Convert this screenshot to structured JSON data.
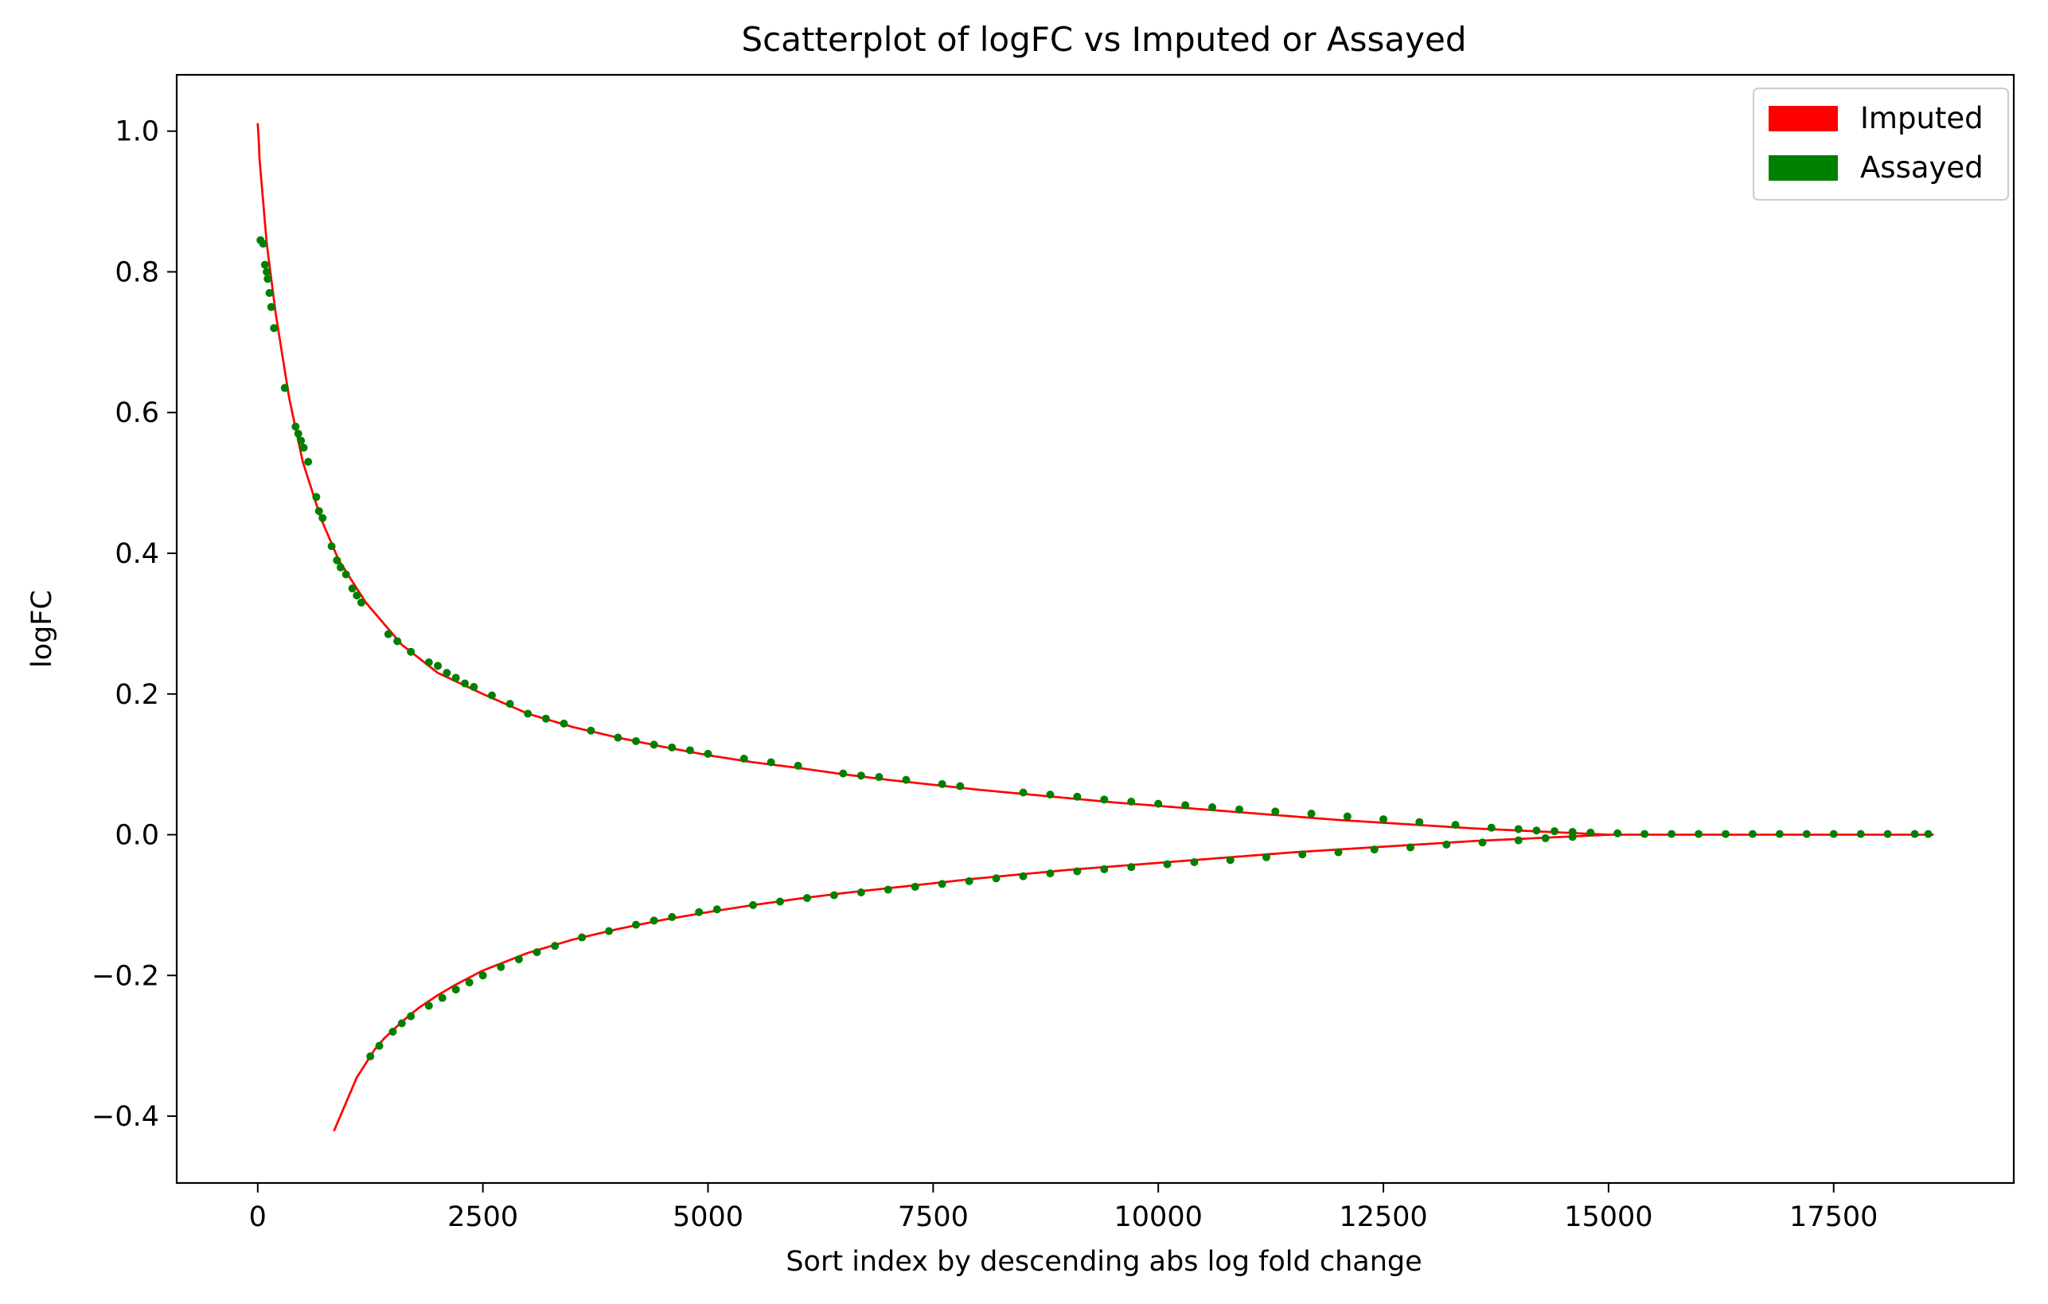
{
  "chart_data": {
    "type": "scatter",
    "title": "Scatterplot of logFC vs Imputed or Assayed",
    "xlabel": "Sort index by descending abs log fold change",
    "ylabel": "logFC",
    "xlim": [
      -900,
      19500
    ],
    "ylim": [
      -0.495,
      1.08
    ],
    "xticks": [
      0,
      2500,
      5000,
      7500,
      10000,
      12500,
      15000,
      17500
    ],
    "xtick_labels": [
      "0",
      "2500",
      "5000",
      "7500",
      "10000",
      "12500",
      "15000",
      "17500"
    ],
    "yticks": [
      -0.4,
      -0.2,
      0.0,
      0.2,
      0.4,
      0.6,
      0.8,
      1.0
    ],
    "ytick_labels": [
      "−0.4",
      "−0.2",
      "0.0",
      "0.2",
      "0.4",
      "0.6",
      "0.8",
      "1.0"
    ],
    "grid": false,
    "legend_position": "top-right",
    "series": [
      {
        "name": "Imputed",
        "color": "#ff0000",
        "marker": "small-dot",
        "curves": [
          {
            "branch": "positive",
            "x": [
              0,
              10,
              20,
              40,
              60,
              80,
              100,
              130,
              160,
              200,
              250,
              300,
              350,
              400,
              450,
              500,
              600,
              700,
              800,
              900,
              1000,
              1200,
              1400,
              1600,
              1800,
              2000,
              2500,
              3000,
              3500,
              4000,
              4500,
              5000,
              5500,
              6000,
              6500,
              7000,
              7500,
              8000,
              8500,
              9000,
              9500,
              10000,
              10500,
              11000,
              11500,
              12000,
              12500,
              13000,
              13500,
              14000,
              14500,
              15000
            ],
            "y": [
              1.01,
              0.99,
              0.96,
              0.93,
              0.9,
              0.87,
              0.84,
              0.81,
              0.78,
              0.74,
              0.7,
              0.66,
              0.62,
              0.59,
              0.56,
              0.53,
              0.49,
              0.45,
              0.42,
              0.39,
              0.37,
              0.33,
              0.3,
              0.27,
              0.25,
              0.23,
              0.2,
              0.172,
              0.153,
              0.138,
              0.125,
              0.113,
              0.103,
              0.095,
              0.086,
              0.078,
              0.071,
              0.064,
              0.058,
              0.052,
              0.046,
              0.041,
              0.036,
              0.031,
              0.026,
              0.021,
              0.017,
              0.013,
              0.009,
              0.006,
              0.003,
              0.0
            ]
          },
          {
            "branch": "negative",
            "x": [
              850,
              900,
              950,
              1000,
              1100,
              1200,
              1300,
              1400,
              1500,
              1600,
              1700,
              1800,
              2000,
              2200,
              2500,
              3000,
              3500,
              4000,
              4500,
              5000,
              5500,
              6000,
              6500,
              7000,
              7500,
              8000,
              8500,
              9000,
              9500,
              10000,
              10500,
              11000,
              11500,
              12000,
              12500,
              13000,
              13500,
              14000,
              14500,
              15000
            ],
            "y": [
              -0.42,
              -0.405,
              -0.39,
              -0.375,
              -0.345,
              -0.325,
              -0.305,
              -0.29,
              -0.278,
              -0.266,
              -0.255,
              -0.245,
              -0.228,
              -0.213,
              -0.193,
              -0.168,
              -0.149,
              -0.134,
              -0.121,
              -0.11,
              -0.1,
              -0.091,
              -0.083,
              -0.076,
              -0.069,
              -0.062,
              -0.056,
              -0.05,
              -0.045,
              -0.04,
              -0.035,
              -0.03,
              -0.025,
              -0.021,
              -0.017,
              -0.013,
              -0.009,
              -0.006,
              -0.003,
              0.0
            ]
          },
          {
            "branch": "tail",
            "x": [
              15000,
              15500,
              16000,
              16500,
              17000,
              17500,
              18000,
              18600
            ],
            "y": [
              0.0,
              0.0,
              0.0,
              0.0,
              0.0,
              0.0,
              0.0,
              0.0
            ]
          }
        ]
      },
      {
        "name": "Assayed",
        "color": "#008000",
        "marker": "dot",
        "points": {
          "x": [
            30,
            60,
            80,
            100,
            110,
            130,
            150,
            180,
            300,
            420,
            450,
            480,
            510,
            560,
            650,
            680,
            720,
            820,
            880,
            920,
            980,
            1050,
            1100,
            1150,
            1450,
            1550,
            1700,
            1900,
            2000,
            2100,
            2200,
            2300,
            2400,
            2600,
            2800,
            3000,
            3200,
            3400,
            3700,
            4000,
            4200,
            4400,
            4600,
            4800,
            5000,
            5400,
            5700,
            6000,
            6500,
            6700,
            6900,
            7200,
            7600,
            7800,
            8500,
            8800,
            9100,
            9400,
            9700,
            10000,
            10300,
            10600,
            10900,
            11300,
            11700,
            12100,
            12500,
            12900,
            13300,
            13700,
            14000,
            14200,
            14400,
            14600,
            14800,
            15100,
            15400,
            15700,
            16000,
            16300,
            16600,
            16900,
            17200,
            17500,
            17800,
            18100,
            18400,
            18550,
            1250,
            1350,
            1500,
            1600,
            1700,
            1900,
            2050,
            2200,
            2350,
            2500,
            2700,
            2900,
            3100,
            3300,
            3600,
            3900,
            4200,
            4400,
            4600,
            4900,
            5100,
            5500,
            5800,
            6100,
            6400,
            6700,
            7000,
            7300,
            7600,
            7900,
            8200,
            8500,
            8800,
            9100,
            9400,
            9700,
            10100,
            10400,
            10800,
            11200,
            11600,
            12000,
            12400,
            12800,
            13200,
            13600,
            14000,
            14300,
            14600
          ],
          "y": [
            0.845,
            0.84,
            0.81,
            0.8,
            0.79,
            0.77,
            0.75,
            0.72,
            0.635,
            0.58,
            0.57,
            0.56,
            0.55,
            0.53,
            0.48,
            0.46,
            0.45,
            0.41,
            0.39,
            0.38,
            0.37,
            0.35,
            0.34,
            0.33,
            0.285,
            0.275,
            0.26,
            0.245,
            0.24,
            0.23,
            0.223,
            0.215,
            0.21,
            0.198,
            0.186,
            0.172,
            0.165,
            0.158,
            0.148,
            0.138,
            0.133,
            0.128,
            0.124,
            0.12,
            0.115,
            0.108,
            0.103,
            0.098,
            0.087,
            0.084,
            0.082,
            0.078,
            0.072,
            0.069,
            0.06,
            0.057,
            0.054,
            0.05,
            0.047,
            0.044,
            0.042,
            0.039,
            0.036,
            0.033,
            0.03,
            0.026,
            0.022,
            0.018,
            0.014,
            0.01,
            0.008,
            0.006,
            0.005,
            0.004,
            0.003,
            0.002,
            0.001,
            0.001,
            0.001,
            0.001,
            0.001,
            0.001,
            0.001,
            0.001,
            0.001,
            0.001,
            0.001,
            0.001,
            -0.315,
            -0.3,
            -0.28,
            -0.268,
            -0.258,
            -0.243,
            -0.232,
            -0.22,
            -0.21,
            -0.2,
            -0.188,
            -0.177,
            -0.167,
            -0.158,
            -0.146,
            -0.137,
            -0.128,
            -0.122,
            -0.117,
            -0.11,
            -0.106,
            -0.1,
            -0.095,
            -0.09,
            -0.086,
            -0.082,
            -0.078,
            -0.074,
            -0.07,
            -0.066,
            -0.062,
            -0.059,
            -0.055,
            -0.052,
            -0.049,
            -0.046,
            -0.042,
            -0.039,
            -0.036,
            -0.032,
            -0.028,
            -0.025,
            -0.021,
            -0.018,
            -0.014,
            -0.011,
            -0.008,
            -0.005,
            -0.003
          ]
        }
      }
    ]
  }
}
